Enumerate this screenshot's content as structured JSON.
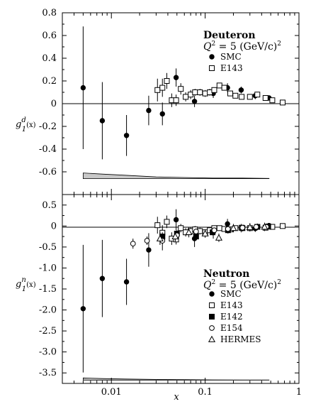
{
  "chart_data": [
    {
      "type": "scatter",
      "panel": "top",
      "xscale": "log",
      "xlim": [
        0.003,
        1
      ],
      "ylim": [
        -0.8,
        0.8
      ],
      "ylabel_main": "g",
      "ylabel_sub": "1",
      "ylabel_sup": "d",
      "ylabel_arg": "(x)",
      "y_ticks": [
        -0.6,
        -0.4,
        -0.2,
        0,
        0.2,
        0.4,
        0.6,
        0.8
      ],
      "y_tick_labels": [
        "-0.6",
        "-0.4",
        "-0.2",
        "0",
        "0.2",
        "0.4",
        "0.6",
        "0.8"
      ],
      "legend_title": "Deuteron",
      "legend_subtitle_main": "Q",
      "legend_subtitle_sup": "2",
      "legend_subtitle_rest": " = 5 (GeV/c)",
      "legend_subtitle_sup2": "2",
      "series": [
        {
          "name": "SMC",
          "marker": "filled-circle",
          "points": [
            {
              "x": 0.005,
              "y": 0.14,
              "err": 0.54
            },
            {
              "x": 0.008,
              "y": -0.15,
              "err": 0.34
            },
            {
              "x": 0.0145,
              "y": -0.28,
              "err": 0.18
            },
            {
              "x": 0.025,
              "y": -0.06,
              "err": 0.13
            },
            {
              "x": 0.035,
              "y": -0.09,
              "err": 0.1
            },
            {
              "x": 0.049,
              "y": 0.23,
              "err": 0.08
            },
            {
              "x": 0.077,
              "y": 0.02,
              "err": 0.05
            },
            {
              "x": 0.122,
              "y": 0.09,
              "err": 0.04
            },
            {
              "x": 0.173,
              "y": 0.14,
              "err": 0.04
            },
            {
              "x": 0.242,
              "y": 0.12,
              "err": 0.03
            },
            {
              "x": 0.342,
              "y": 0.07,
              "err": 0.03
            },
            {
              "x": 0.48,
              "y": 0.05,
              "err": 0.02
            }
          ]
        },
        {
          "name": "E143",
          "marker": "open-square",
          "points": [
            {
              "x": 0.031,
              "y": 0.12,
              "err": 0.1
            },
            {
              "x": 0.035,
              "y": 0.14,
              "err": 0.08
            },
            {
              "x": 0.039,
              "y": 0.2,
              "err": 0.07
            },
            {
              "x": 0.044,
              "y": 0.03,
              "err": 0.06
            },
            {
              "x": 0.049,
              "y": 0.03,
              "err": 0.05
            },
            {
              "x": 0.055,
              "y": 0.13,
              "err": 0.05
            },
            {
              "x": 0.062,
              "y": 0.06,
              "err": 0.04
            },
            {
              "x": 0.07,
              "y": 0.08,
              "err": 0.04
            },
            {
              "x": 0.078,
              "y": 0.1,
              "err": 0.03
            },
            {
              "x": 0.088,
              "y": 0.1,
              "err": 0.03
            },
            {
              "x": 0.1,
              "y": 0.09,
              "err": 0.03
            },
            {
              "x": 0.112,
              "y": 0.1,
              "err": 0.03
            },
            {
              "x": 0.125,
              "y": 0.12,
              "err": 0.02
            },
            {
              "x": 0.142,
              "y": 0.16,
              "err": 0.02
            },
            {
              "x": 0.16,
              "y": 0.14,
              "err": 0.02
            },
            {
              "x": 0.185,
              "y": 0.09,
              "err": 0.02
            },
            {
              "x": 0.21,
              "y": 0.07,
              "err": 0.02
            },
            {
              "x": 0.245,
              "y": 0.06,
              "err": 0.02
            },
            {
              "x": 0.3,
              "y": 0.06,
              "err": 0.02
            },
            {
              "x": 0.36,
              "y": 0.08,
              "err": 0.01
            },
            {
              "x": 0.44,
              "y": 0.05,
              "err": 0.01
            },
            {
              "x": 0.52,
              "y": 0.03,
              "err": 0.01
            },
            {
              "x": 0.67,
              "y": 0.01,
              "err": 0.01
            }
          ]
        }
      ],
      "systematic_band": {
        "baseline": -0.66,
        "points": [
          {
            "x": 0.005,
            "y": -0.61
          },
          {
            "x": 0.008,
            "y": -0.62
          },
          {
            "x": 0.014,
            "y": -0.63
          },
          {
            "x": 0.03,
            "y": -0.645
          },
          {
            "x": 0.06,
            "y": -0.65
          },
          {
            "x": 0.12,
            "y": -0.655
          },
          {
            "x": 0.25,
            "y": -0.655
          },
          {
            "x": 0.48,
            "y": -0.658
          }
        ]
      }
    },
    {
      "type": "scatter",
      "panel": "bottom",
      "xscale": "log",
      "xlim": [
        0.003,
        1
      ],
      "ylim": [
        -3.75,
        0.75
      ],
      "xlabel": "x",
      "ylabel_main": "g",
      "ylabel_sub": "1",
      "ylabel_sup": "n",
      "ylabel_arg": "(x)",
      "x_ticks": [
        0.01,
        0.1,
        1
      ],
      "x_tick_labels": [
        "0.01",
        "0.1",
        "1"
      ],
      "y_ticks": [
        -3.5,
        -3.0,
        -2.5,
        -2.0,
        -1.5,
        -1.0,
        -0.5,
        0,
        0.5
      ],
      "y_tick_labels": [
        "-3.5",
        "-3.0",
        "-2.5",
        "-2.0",
        "-1.5",
        "-1.0",
        "-0.5",
        "0",
        "0.5"
      ],
      "legend_title": "Neutron",
      "legend_subtitle_main": "Q",
      "legend_subtitle_sup": "2",
      "legend_subtitle_rest": " = 5 (GeV/c)",
      "legend_subtitle_sup2": "2",
      "series": [
        {
          "name": "SMC",
          "marker": "filled-circle",
          "points": [
            {
              "x": 0.005,
              "y": -1.97,
              "err": 1.52
            },
            {
              "x": 0.008,
              "y": -1.25,
              "err": 0.92
            },
            {
              "x": 0.0145,
              "y": -1.33,
              "err": 0.55
            },
            {
              "x": 0.025,
              "y": -0.57,
              "err": 0.4
            },
            {
              "x": 0.035,
              "y": -0.33,
              "err": 0.25
            },
            {
              "x": 0.049,
              "y": 0.15,
              "err": 0.25
            },
            {
              "x": 0.077,
              "y": -0.3,
              "err": 0.2
            },
            {
              "x": 0.122,
              "y": -0.15,
              "err": 0.15
            },
            {
              "x": 0.173,
              "y": 0.05,
              "err": 0.12
            },
            {
              "x": 0.242,
              "y": -0.05,
              "err": 0.1
            },
            {
              "x": 0.342,
              "y": -0.06,
              "err": 0.08
            },
            {
              "x": 0.48,
              "y": 0.01,
              "err": 0.06
            }
          ]
        },
        {
          "name": "E143",
          "marker": "open-square",
          "points": [
            {
              "x": 0.031,
              "y": 0.02,
              "err": 0.2
            },
            {
              "x": 0.035,
              "y": -0.16,
              "err": 0.18
            },
            {
              "x": 0.039,
              "y": 0.1,
              "err": 0.15
            },
            {
              "x": 0.044,
              "y": -0.3,
              "err": 0.15
            },
            {
              "x": 0.049,
              "y": -0.32,
              "err": 0.12
            },
            {
              "x": 0.055,
              "y": -0.05,
              "err": 0.1
            },
            {
              "x": 0.062,
              "y": -0.15,
              "err": 0.1
            },
            {
              "x": 0.07,
              "y": -0.12,
              "err": 0.1
            },
            {
              "x": 0.078,
              "y": -0.08,
              "err": 0.08
            },
            {
              "x": 0.088,
              "y": -0.12,
              "err": 0.08
            },
            {
              "x": 0.1,
              "y": -0.15,
              "err": 0.07
            },
            {
              "x": 0.112,
              "y": -0.1,
              "err": 0.07
            },
            {
              "x": 0.125,
              "y": -0.05,
              "err": 0.06
            },
            {
              "x": 0.142,
              "y": -0.05,
              "err": 0.06
            },
            {
              "x": 0.16,
              "y": -0.07,
              "err": 0.05
            },
            {
              "x": 0.185,
              "y": -0.08,
              "err": 0.05
            },
            {
              "x": 0.21,
              "y": -0.05,
              "err": 0.05
            },
            {
              "x": 0.245,
              "y": -0.04,
              "err": 0.04
            },
            {
              "x": 0.3,
              "y": -0.05,
              "err": 0.04
            },
            {
              "x": 0.36,
              "y": -0.02,
              "err": 0.04
            },
            {
              "x": 0.44,
              "y": -0.04,
              "err": 0.03
            },
            {
              "x": 0.52,
              "y": -0.02,
              "err": 0.03
            },
            {
              "x": 0.67,
              "y": 0.0,
              "err": 0.03
            }
          ]
        },
        {
          "name": "E142",
          "marker": "filled-square",
          "points": [
            {
              "x": 0.035,
              "y": -0.25,
              "err": 0.1
            },
            {
              "x": 0.05,
              "y": -0.18,
              "err": 0.08
            },
            {
              "x": 0.08,
              "y": -0.25,
              "err": 0.07
            },
            {
              "x": 0.12,
              "y": -0.15,
              "err": 0.07
            },
            {
              "x": 0.175,
              "y": -0.1,
              "err": 0.08
            },
            {
              "x": 0.25,
              "y": -0.05,
              "err": 0.08
            },
            {
              "x": 0.36,
              "y": -0.02,
              "err": 0.08
            },
            {
              "x": 0.47,
              "y": -0.01,
              "err": 0.08
            }
          ]
        },
        {
          "name": "E154",
          "marker": "open-circle",
          "points": [
            {
              "x": 0.017,
              "y": -0.42,
              "err": 0.12
            },
            {
              "x": 0.024,
              "y": -0.35,
              "err": 0.1
            },
            {
              "x": 0.035,
              "y": -0.35,
              "err": 0.08
            },
            {
              "x": 0.05,
              "y": -0.22,
              "err": 0.06
            },
            {
              "x": 0.08,
              "y": -0.13,
              "err": 0.05
            },
            {
              "x": 0.125,
              "y": -0.1,
              "err": 0.05
            },
            {
              "x": 0.175,
              "y": -0.07,
              "err": 0.05
            },
            {
              "x": 0.25,
              "y": -0.04,
              "err": 0.05
            },
            {
              "x": 0.35,
              "y": -0.02,
              "err": 0.05
            },
            {
              "x": 0.45,
              "y": -0.02,
              "err": 0.05
            }
          ]
        },
        {
          "name": "HERMES",
          "marker": "open-triangle",
          "points": [
            {
              "x": 0.033,
              "y": -0.3,
              "err": 0.15
            },
            {
              "x": 0.048,
              "y": -0.25,
              "err": 0.12
            },
            {
              "x": 0.067,
              "y": -0.15,
              "err": 0.12
            },
            {
              "x": 0.1,
              "y": -0.18,
              "err": 0.1
            },
            {
              "x": 0.14,
              "y": -0.28,
              "err": 0.1
            },
            {
              "x": 0.2,
              "y": -0.05,
              "err": 0.1
            },
            {
              "x": 0.3,
              "y": -0.03,
              "err": 0.1
            },
            {
              "x": 0.43,
              "y": -0.02,
              "err": 0.1
            }
          ]
        }
      ],
      "systematic_band": {
        "baseline": -3.67,
        "points": [
          {
            "x": 0.005,
            "y": -3.62
          },
          {
            "x": 0.008,
            "y": -3.635
          },
          {
            "x": 0.014,
            "y": -3.645
          },
          {
            "x": 0.03,
            "y": -3.655
          },
          {
            "x": 0.06,
            "y": -3.66
          },
          {
            "x": 0.12,
            "y": -3.665
          },
          {
            "x": 0.25,
            "y": -3.668
          },
          {
            "x": 0.48,
            "y": -3.669
          }
        ]
      }
    }
  ]
}
